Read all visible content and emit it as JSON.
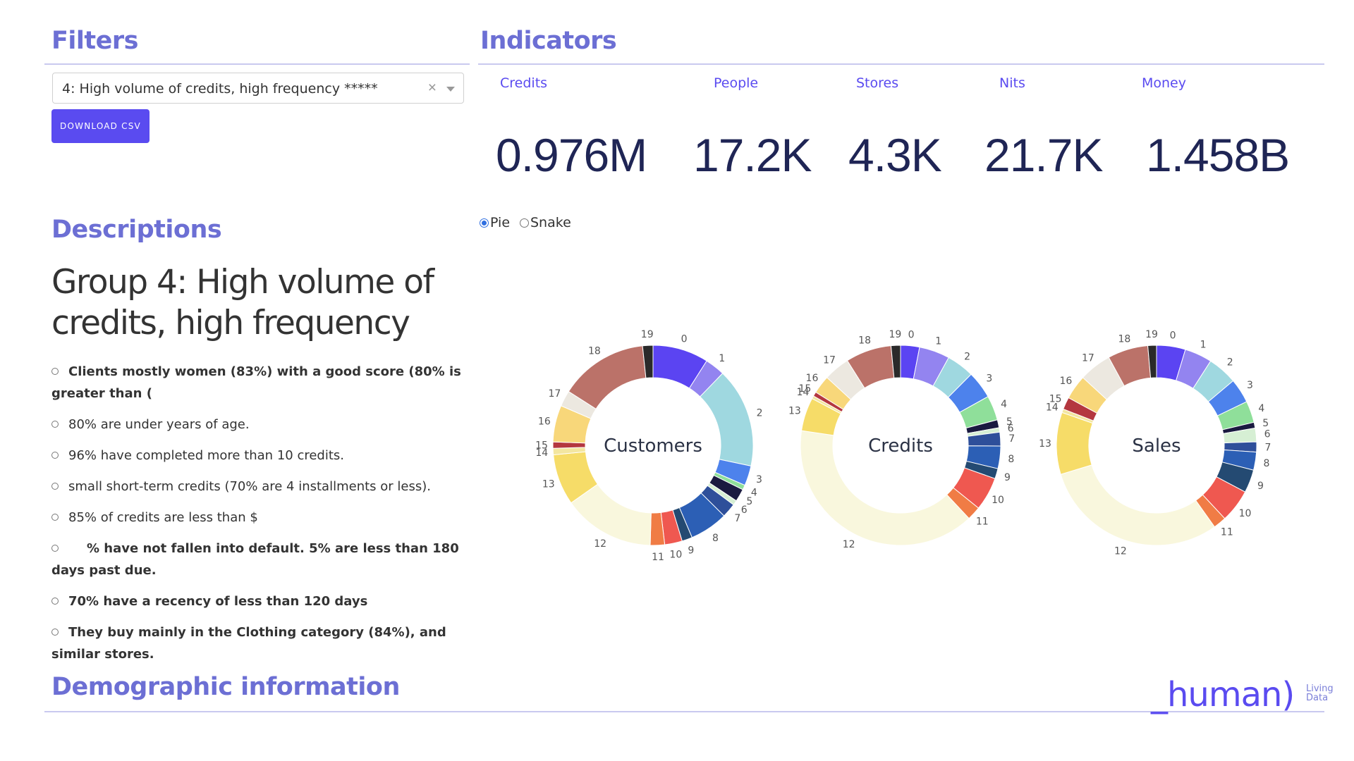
{
  "filters": {
    "title": "Filters",
    "selected": "4: High volume of credits, high frequency *****",
    "clear_icon": "×",
    "download_label": "DOWNLOAD CSV"
  },
  "indicators": {
    "title": "Indicators",
    "items": [
      {
        "label": "Credits",
        "value": "0.976M"
      },
      {
        "label": "People",
        "value": "17.2K"
      },
      {
        "label": "Stores",
        "value": "4.3K"
      },
      {
        "label": "Nits",
        "value": "21.7K"
      },
      {
        "label": "Money",
        "value": "1.458B"
      }
    ]
  },
  "chart_mode": {
    "options": [
      "Pie",
      "Snake"
    ],
    "selected": "Pie"
  },
  "descriptions": {
    "title": "Descriptions",
    "group_title": "Group 4: High volume of credits, high frequency",
    "bullets": [
      "Clients mostly women (83%) with a good score (80% is greater than (",
      "80% are under       years of age.",
      "96% have completed more than 10 credits.",
      "small short-term credits (70% are 4 installments or less).",
      "85% of credits are less than $",
      "% have not fallen into default. 5% are less than 180 days past due.",
      "70% have a recency of less than 120 days",
      "They buy mainly in the Clothing category (84%), and similar stores."
    ]
  },
  "demographic": {
    "title": "Demographic information"
  },
  "logo": {
    "text": "_human)",
    "sub1": "Living",
    "sub2": "Data"
  },
  "chart_data": {
    "type": "pie",
    "donut": true,
    "categories": [
      "0",
      "1",
      "2",
      "3",
      "4",
      "5",
      "6",
      "7",
      "8",
      "9",
      "10",
      "11",
      "12",
      "13",
      "14",
      "15",
      "16",
      "17",
      "18",
      "19"
    ],
    "colors": [
      "#5b44f2",
      "#9384f0",
      "#9fd8e0",
      "#4d82ec",
      "#8fdf9a",
      "#1a1a40",
      "#d6efd4",
      "#2e4f9a",
      "#2c5fb5",
      "#244a72",
      "#ef5850",
      "#f07c45",
      "#f9f7dd",
      "#f6dc68",
      "#f3e6a0",
      "#b4373f",
      "#f8d77a",
      "#ece8e0",
      "#bb7269",
      "#2a2a2a"
    ],
    "charts": [
      {
        "title": "Customers",
        "values": [
          7.0,
          2.5,
          12.5,
          2.5,
          0.6,
          1.6,
          0.6,
          1.8,
          4.8,
          1.3,
          2.2,
          1.8,
          11.5,
          6.4,
          0.8,
          0.8,
          4.6,
          2.0,
          11.1,
          1.3
        ]
      },
      {
        "title": "Credits",
        "values": [
          2.6,
          4.2,
          3.8,
          3.8,
          3.4,
          1.1,
          0.6,
          1.9,
          3.1,
          1.4,
          4.6,
          1.9,
          33.5,
          4.6,
          0.4,
          0.6,
          2.5,
          3.6,
          6.3,
          1.3
        ]
      },
      {
        "title": "Sales",
        "values": [
          4.0,
          3.8,
          4.1,
          3.4,
          3.0,
          0.8,
          1.9,
          1.4,
          2.5,
          3.2,
          4.6,
          1.8,
          25.9,
          8.6,
          0.5,
          1.7,
          3.4,
          4.5,
          5.6,
          1.2
        ]
      }
    ]
  }
}
